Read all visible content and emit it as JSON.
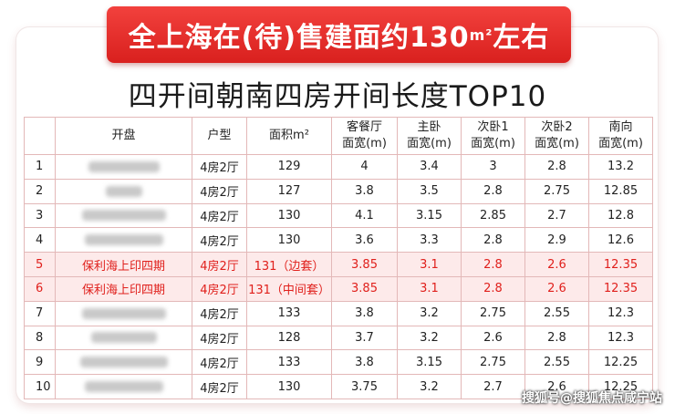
{
  "banner": {
    "text": "全上海在(待)售建面约130",
    "sup": "m²",
    "suffix": "左右"
  },
  "title": "四开间朝南四房开间长度TOP10",
  "table": {
    "headers": [
      {
        "line1": "",
        "line2": ""
      },
      {
        "line1": "开盘",
        "line2": ""
      },
      {
        "line1": "户型",
        "line2": ""
      },
      {
        "line1": "面积m²",
        "line2": ""
      },
      {
        "line1": "客餐厅",
        "line2": "面宽(m)"
      },
      {
        "line1": "主卧",
        "line2": "面宽(m)"
      },
      {
        "line1": "次卧1",
        "line2": "面宽(m)"
      },
      {
        "line1": "次卧2",
        "line2": "面宽(m)"
      },
      {
        "line1": "南向",
        "line2": "面宽(m)"
      }
    ],
    "rows": [
      {
        "idx": "1",
        "name": "",
        "type": "4房2厅",
        "area": "129",
        "living": "4",
        "master": "3.4",
        "bed1": "3",
        "bed2": "2.8",
        "south": "13.2",
        "highlight": false
      },
      {
        "idx": "2",
        "name": "",
        "type": "4房2厅",
        "area": "127",
        "living": "3.8",
        "master": "3.5",
        "bed1": "2.8",
        "bed2": "2.75",
        "south": "12.85",
        "highlight": false
      },
      {
        "idx": "3",
        "name": "",
        "type": "4房2厅",
        "area": "130",
        "living": "4.1",
        "master": "3.15",
        "bed1": "2.85",
        "bed2": "2.7",
        "south": "12.8",
        "highlight": false
      },
      {
        "idx": "4",
        "name": "",
        "type": "4房2厅",
        "area": "130",
        "living": "3.6",
        "master": "3.3",
        "bed1": "2.8",
        "bed2": "2.9",
        "south": "12.6",
        "highlight": false
      },
      {
        "idx": "5",
        "name": "保利海上印四期",
        "type": "4房2厅",
        "area": "131（边套）",
        "living": "3.85",
        "master": "3.1",
        "bed1": "2.8",
        "bed2": "2.6",
        "south": "12.35",
        "highlight": true
      },
      {
        "idx": "6",
        "name": "保利海上印四期",
        "type": "4房2厅",
        "area": "131（中间套）",
        "living": "3.85",
        "master": "3.1",
        "bed1": "2.8",
        "bed2": "2.6",
        "south": "12.35",
        "highlight": true
      },
      {
        "idx": "7",
        "name": "",
        "type": "4房2厅",
        "area": "133",
        "living": "3.8",
        "master": "3.2",
        "bed1": "2.75",
        "bed2": "2.55",
        "south": "12.3",
        "highlight": false
      },
      {
        "idx": "8",
        "name": "",
        "type": "4房2厅",
        "area": "128",
        "living": "3.7",
        "master": "3.2",
        "bed1": "2.6",
        "bed2": "2.8",
        "south": "12.3",
        "highlight": false
      },
      {
        "idx": "9",
        "name": "",
        "type": "4房2厅",
        "area": "133",
        "living": "3.8",
        "master": "3.15",
        "bed1": "2.75",
        "bed2": "2.55",
        "south": "12.25",
        "highlight": false
      },
      {
        "idx": "10",
        "name": "",
        "type": "4房2厅",
        "area": "130",
        "living": "3.75",
        "master": "3.2",
        "bed1": "2.7",
        "bed2": "2.6",
        "south": "12.25",
        "highlight": false
      }
    ]
  },
  "watermark": "搜狐号@搜狐焦点咸宁站",
  "colors": {
    "accent": "#e0201c",
    "highlight_bg": "#fdeaea",
    "border": "#e3b8b8"
  }
}
